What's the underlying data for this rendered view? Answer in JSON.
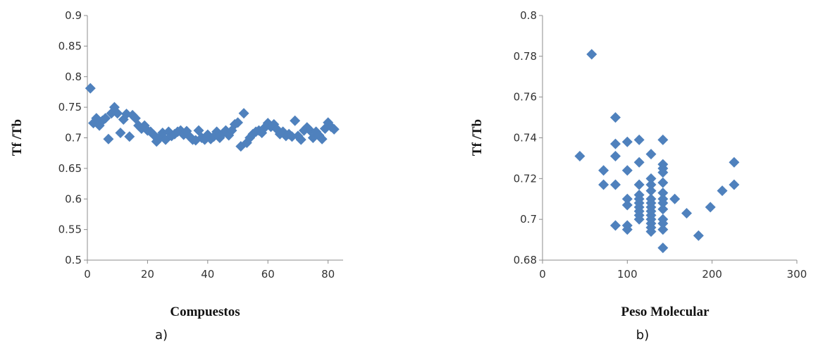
{
  "colors": {
    "marker": "#4f81bd",
    "axis": "#8c8c8c"
  },
  "chart_data": [
    {
      "type": "scatter",
      "caption": "a)",
      "xlabel": "Compuestos",
      "ylabel": "Tf /Tb",
      "xlim": [
        0,
        85
      ],
      "ylim": [
        0.5,
        0.9
      ],
      "xticks": [
        0,
        20,
        40,
        60,
        80
      ],
      "xtick_labels": [
        "0",
        "20",
        "40",
        "60",
        "80"
      ],
      "yticks": [
        0.5,
        0.55,
        0.6,
        0.65,
        0.7,
        0.75,
        0.8,
        0.85,
        0.9
      ],
      "ytick_labels": [
        "0.5",
        "0.55",
        "0.6",
        "0.65",
        "0.7",
        "0.75",
        "0.8",
        "0.85",
        "0.9"
      ],
      "grid": false,
      "legend": "none",
      "points": [
        [
          1,
          0.781
        ],
        [
          2,
          0.724
        ],
        [
          3,
          0.732
        ],
        [
          4,
          0.72
        ],
        [
          5,
          0.728
        ],
        [
          6,
          0.732
        ],
        [
          7,
          0.698
        ],
        [
          8,
          0.74
        ],
        [
          9,
          0.75
        ],
        [
          10,
          0.74
        ],
        [
          11,
          0.708
        ],
        [
          12,
          0.73
        ],
        [
          13,
          0.739
        ],
        [
          14,
          0.702
        ],
        [
          15,
          0.737
        ],
        [
          16,
          0.732
        ],
        [
          17,
          0.72
        ],
        [
          18,
          0.715
        ],
        [
          19,
          0.72
        ],
        [
          20,
          0.712
        ],
        [
          21,
          0.71
        ],
        [
          22,
          0.705
        ],
        [
          23,
          0.694
        ],
        [
          24,
          0.7
        ],
        [
          25,
          0.708
        ],
        [
          26,
          0.697
        ],
        [
          27,
          0.71
        ],
        [
          28,
          0.703
        ],
        [
          29,
          0.706
        ],
        [
          30,
          0.71
        ],
        [
          31,
          0.712
        ],
        [
          32,
          0.705
        ],
        [
          33,
          0.711
        ],
        [
          34,
          0.702
        ],
        [
          35,
          0.697
        ],
        [
          36,
          0.696
        ],
        [
          37,
          0.712
        ],
        [
          38,
          0.7
        ],
        [
          39,
          0.697
        ],
        [
          40,
          0.705
        ],
        [
          41,
          0.698
        ],
        [
          42,
          0.702
        ],
        [
          43,
          0.71
        ],
        [
          44,
          0.7
        ],
        [
          45,
          0.707
        ],
        [
          46,
          0.712
        ],
        [
          47,
          0.704
        ],
        [
          48,
          0.712
        ],
        [
          49,
          0.722
        ],
        [
          50,
          0.725
        ],
        [
          51,
          0.686
        ],
        [
          52,
          0.74
        ],
        [
          53,
          0.692
        ],
        [
          54,
          0.7
        ],
        [
          55,
          0.706
        ],
        [
          56,
          0.71
        ],
        [
          57,
          0.712
        ],
        [
          58,
          0.708
        ],
        [
          59,
          0.717
        ],
        [
          60,
          0.724
        ],
        [
          61,
          0.718
        ],
        [
          62,
          0.722
        ],
        [
          63,
          0.714
        ],
        [
          64,
          0.706
        ],
        [
          65,
          0.71
        ],
        [
          66,
          0.703
        ],
        [
          67,
          0.706
        ],
        [
          68,
          0.702
        ],
        [
          69,
          0.728
        ],
        [
          70,
          0.703
        ],
        [
          71,
          0.697
        ],
        [
          72,
          0.712
        ],
        [
          73,
          0.717
        ],
        [
          74,
          0.712
        ],
        [
          75,
          0.7
        ],
        [
          76,
          0.71
        ],
        [
          77,
          0.704
        ],
        [
          78,
          0.698
        ],
        [
          79,
          0.715
        ],
        [
          80,
          0.725
        ],
        [
          81,
          0.718
        ],
        [
          82,
          0.714
        ]
      ]
    },
    {
      "type": "scatter",
      "caption": "b)",
      "xlabel": "Peso Molecular",
      "ylabel": "Tf /Tb",
      "xlim": [
        0,
        300
      ],
      "ylim": [
        0.68,
        0.8
      ],
      "xticks": [
        0,
        100,
        200,
        300
      ],
      "xtick_labels": [
        "0",
        "100",
        "200",
        "300"
      ],
      "yticks": [
        0.68,
        0.7,
        0.72,
        0.74,
        0.76,
        0.78,
        0.8
      ],
      "ytick_labels": [
        "0.68",
        "0.7",
        "0.72",
        "0.74",
        "0.76",
        "0.78",
        "0.8"
      ],
      "grid": false,
      "legend": "none",
      "points": [
        [
          44,
          0.731
        ],
        [
          58,
          0.781
        ],
        [
          72,
          0.724
        ],
        [
          72,
          0.717
        ],
        [
          86,
          0.75
        ],
        [
          86,
          0.737
        ],
        [
          86,
          0.731
        ],
        [
          86,
          0.717
        ],
        [
          86,
          0.697
        ],
        [
          100,
          0.738
        ],
        [
          100,
          0.724
        ],
        [
          100,
          0.71
        ],
        [
          100,
          0.707
        ],
        [
          100,
          0.697
        ],
        [
          100,
          0.695
        ],
        [
          114,
          0.739
        ],
        [
          114,
          0.728
        ],
        [
          114,
          0.717
        ],
        [
          114,
          0.712
        ],
        [
          114,
          0.71
        ],
        [
          114,
          0.708
        ],
        [
          114,
          0.706
        ],
        [
          114,
          0.704
        ],
        [
          114,
          0.702
        ],
        [
          114,
          0.7
        ],
        [
          128,
          0.732
        ],
        [
          128,
          0.72
        ],
        [
          128,
          0.717
        ],
        [
          128,
          0.714
        ],
        [
          128,
          0.71
        ],
        [
          128,
          0.708
        ],
        [
          128,
          0.706
        ],
        [
          128,
          0.704
        ],
        [
          128,
          0.702
        ],
        [
          128,
          0.7
        ],
        [
          128,
          0.698
        ],
        [
          128,
          0.696
        ],
        [
          128,
          0.694
        ],
        [
          142,
          0.739
        ],
        [
          142,
          0.727
        ],
        [
          142,
          0.725
        ],
        [
          142,
          0.723
        ],
        [
          142,
          0.718
        ],
        [
          142,
          0.713
        ],
        [
          142,
          0.71
        ],
        [
          142,
          0.708
        ],
        [
          142,
          0.705
        ],
        [
          142,
          0.7
        ],
        [
          142,
          0.698
        ],
        [
          142,
          0.695
        ],
        [
          142,
          0.686
        ],
        [
          156,
          0.71
        ],
        [
          170,
          0.703
        ],
        [
          184,
          0.692
        ],
        [
          198,
          0.706
        ],
        [
          212,
          0.714
        ],
        [
          226,
          0.728
        ],
        [
          226,
          0.717
        ]
      ]
    }
  ]
}
